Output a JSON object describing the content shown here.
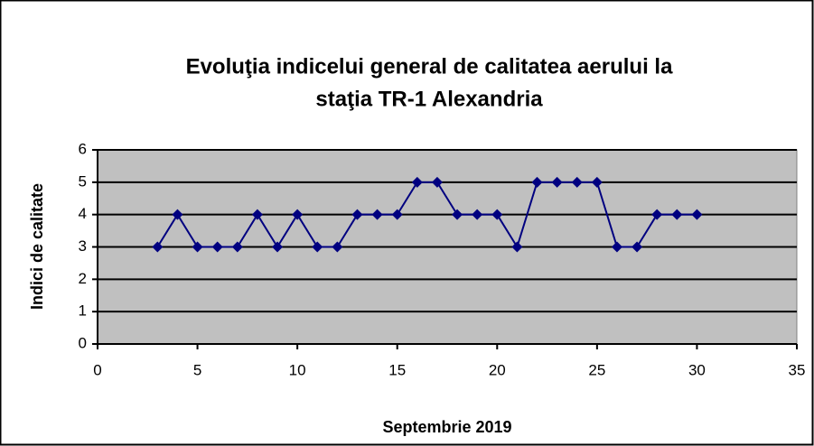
{
  "chart_data": {
    "type": "line",
    "title": [
      "Evoluţia indicelui general de calitatea aerului la",
      "staţia TR-1 Alexandria"
    ],
    "x_label": "Septembrie 2019",
    "y_label": "Indici de calitate",
    "x": [
      3,
      4,
      5,
      6,
      7,
      8,
      9,
      10,
      11,
      12,
      13,
      14,
      15,
      16,
      17,
      18,
      19,
      20,
      21,
      22,
      23,
      24,
      25,
      26,
      27,
      28,
      29,
      30
    ],
    "series": [
      {
        "color": "#000080",
        "values": [
          3,
          4,
          3,
          3,
          3,
          4,
          3,
          4,
          3,
          3,
          4,
          4,
          4,
          5,
          5,
          4,
          4,
          4,
          3,
          5,
          5,
          5,
          5,
          3,
          3,
          4,
          4,
          4
        ]
      }
    ],
    "xlim": [
      0,
      35
    ],
    "xticks": [
      0,
      5,
      10,
      15,
      20,
      25,
      30,
      35
    ],
    "ylim": [
      0,
      6
    ],
    "yticks": [
      0,
      1,
      2,
      3,
      4,
      5,
      6
    ],
    "grid": true,
    "plot_background": "#c0c0c0"
  }
}
